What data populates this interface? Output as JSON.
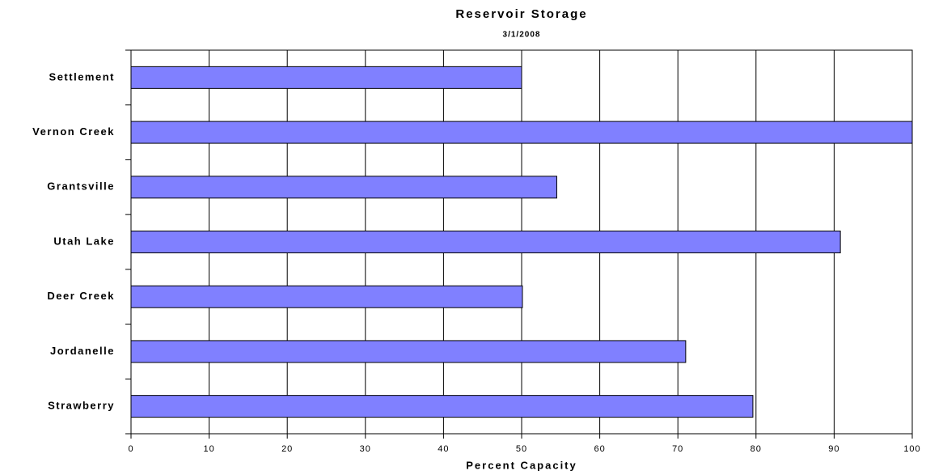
{
  "chart_data": {
    "type": "hbar",
    "title": "Reservoir Storage",
    "subtitle": "3/1/2008",
    "x_label": "Percent Capacity",
    "categories": [
      "Settlement",
      "Vernon Creek",
      "Grantsville",
      "Utah Lake",
      "Deer Creek",
      "Jordanelle",
      "Strawberry"
    ],
    "values": [
      50.0,
      100,
      54.5,
      90.8,
      50.1,
      71.0,
      79.6
    ],
    "color": "#8080ff",
    "xlim": [
      0,
      100
    ],
    "xticks": [
      0,
      10,
      20,
      30,
      40,
      50,
      60,
      70,
      80,
      90,
      100
    ],
    "grid": true
  }
}
